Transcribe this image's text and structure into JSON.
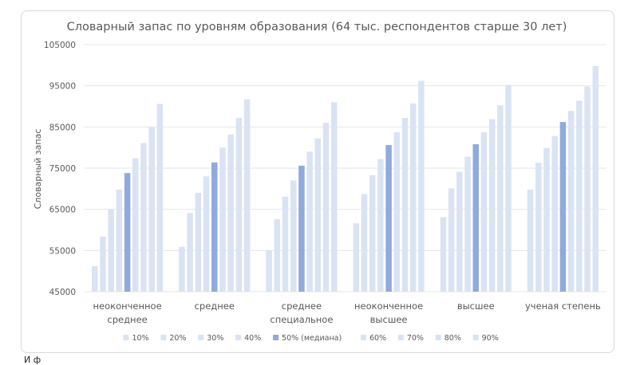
{
  "chart_data": {
    "type": "bar",
    "title": "Словарный запас по уровням образования (64 тыс. респондентов старше 30 лет)",
    "ylabel": "Словарный запас",
    "xlabel": "",
    "ylim": [
      45000,
      105000
    ],
    "yticks": [
      45000,
      55000,
      65000,
      75000,
      85000,
      95000,
      105000
    ],
    "grid": true,
    "legend_position": "bottom",
    "categories": [
      [
        "неоконченное",
        "среднее"
      ],
      [
        "среднее"
      ],
      [
        "среднее",
        "специальное"
      ],
      [
        "неоконченное",
        "высшее"
      ],
      [
        "высшее"
      ],
      [
        "ученая степень"
      ]
    ],
    "series": [
      {
        "name": "10%",
        "values": [
          51200,
          55900,
          55000,
          61600,
          63100,
          69800
        ]
      },
      {
        "name": "20%",
        "values": [
          58400,
          64100,
          62600,
          68700,
          70100,
          76300
        ]
      },
      {
        "name": "30%",
        "values": [
          65000,
          69000,
          68100,
          73300,
          74100,
          79900
        ]
      },
      {
        "name": "40%",
        "values": [
          69800,
          73000,
          72000,
          77200,
          77800,
          82800
        ]
      },
      {
        "name": "50% (медиана)",
        "values": [
          73800,
          76400,
          75600,
          80600,
          80800,
          86200
        ]
      },
      {
        "name": "60%",
        "values": [
          77400,
          80000,
          79000,
          83700,
          83700,
          88900
        ]
      },
      {
        "name": "70%",
        "values": [
          81100,
          83200,
          82200,
          87200,
          86900,
          91400
        ]
      },
      {
        "name": "80%",
        "values": [
          85000,
          87200,
          86000,
          90700,
          90300,
          94800
        ]
      },
      {
        "name": "90%",
        "values": [
          90600,
          91700,
          91000,
          96200,
          95200,
          99800
        ]
      }
    ],
    "colors": {
      "bar": "#dae3f3",
      "median": "#8faadc",
      "grid": "#e6e6e6",
      "text": "#595959"
    }
  },
  "footer": {
    "text": "И          ф"
  }
}
